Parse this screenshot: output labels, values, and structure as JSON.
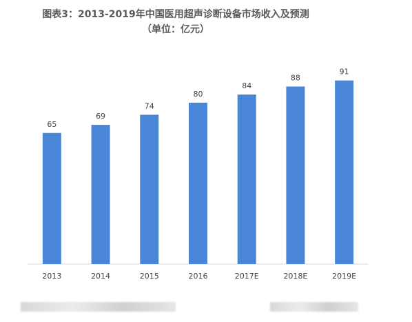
{
  "chart_data": {
    "type": "bar",
    "title": "图表3：2013-2019年中国医用超声诊断设备市场收入及预测",
    "subtitle": "（单位：亿元）",
    "categories": [
      "2013",
      "2014",
      "2015",
      "2016",
      "2017E",
      "2018E",
      "2019E"
    ],
    "values": [
      65,
      69,
      74,
      80,
      84,
      88,
      91
    ],
    "ylim": [
      0,
      95
    ],
    "grid": false,
    "legend": "none",
    "bar_color": "#4a86d8",
    "axis_color": "#d9d9d9",
    "label_color": "#404040"
  }
}
